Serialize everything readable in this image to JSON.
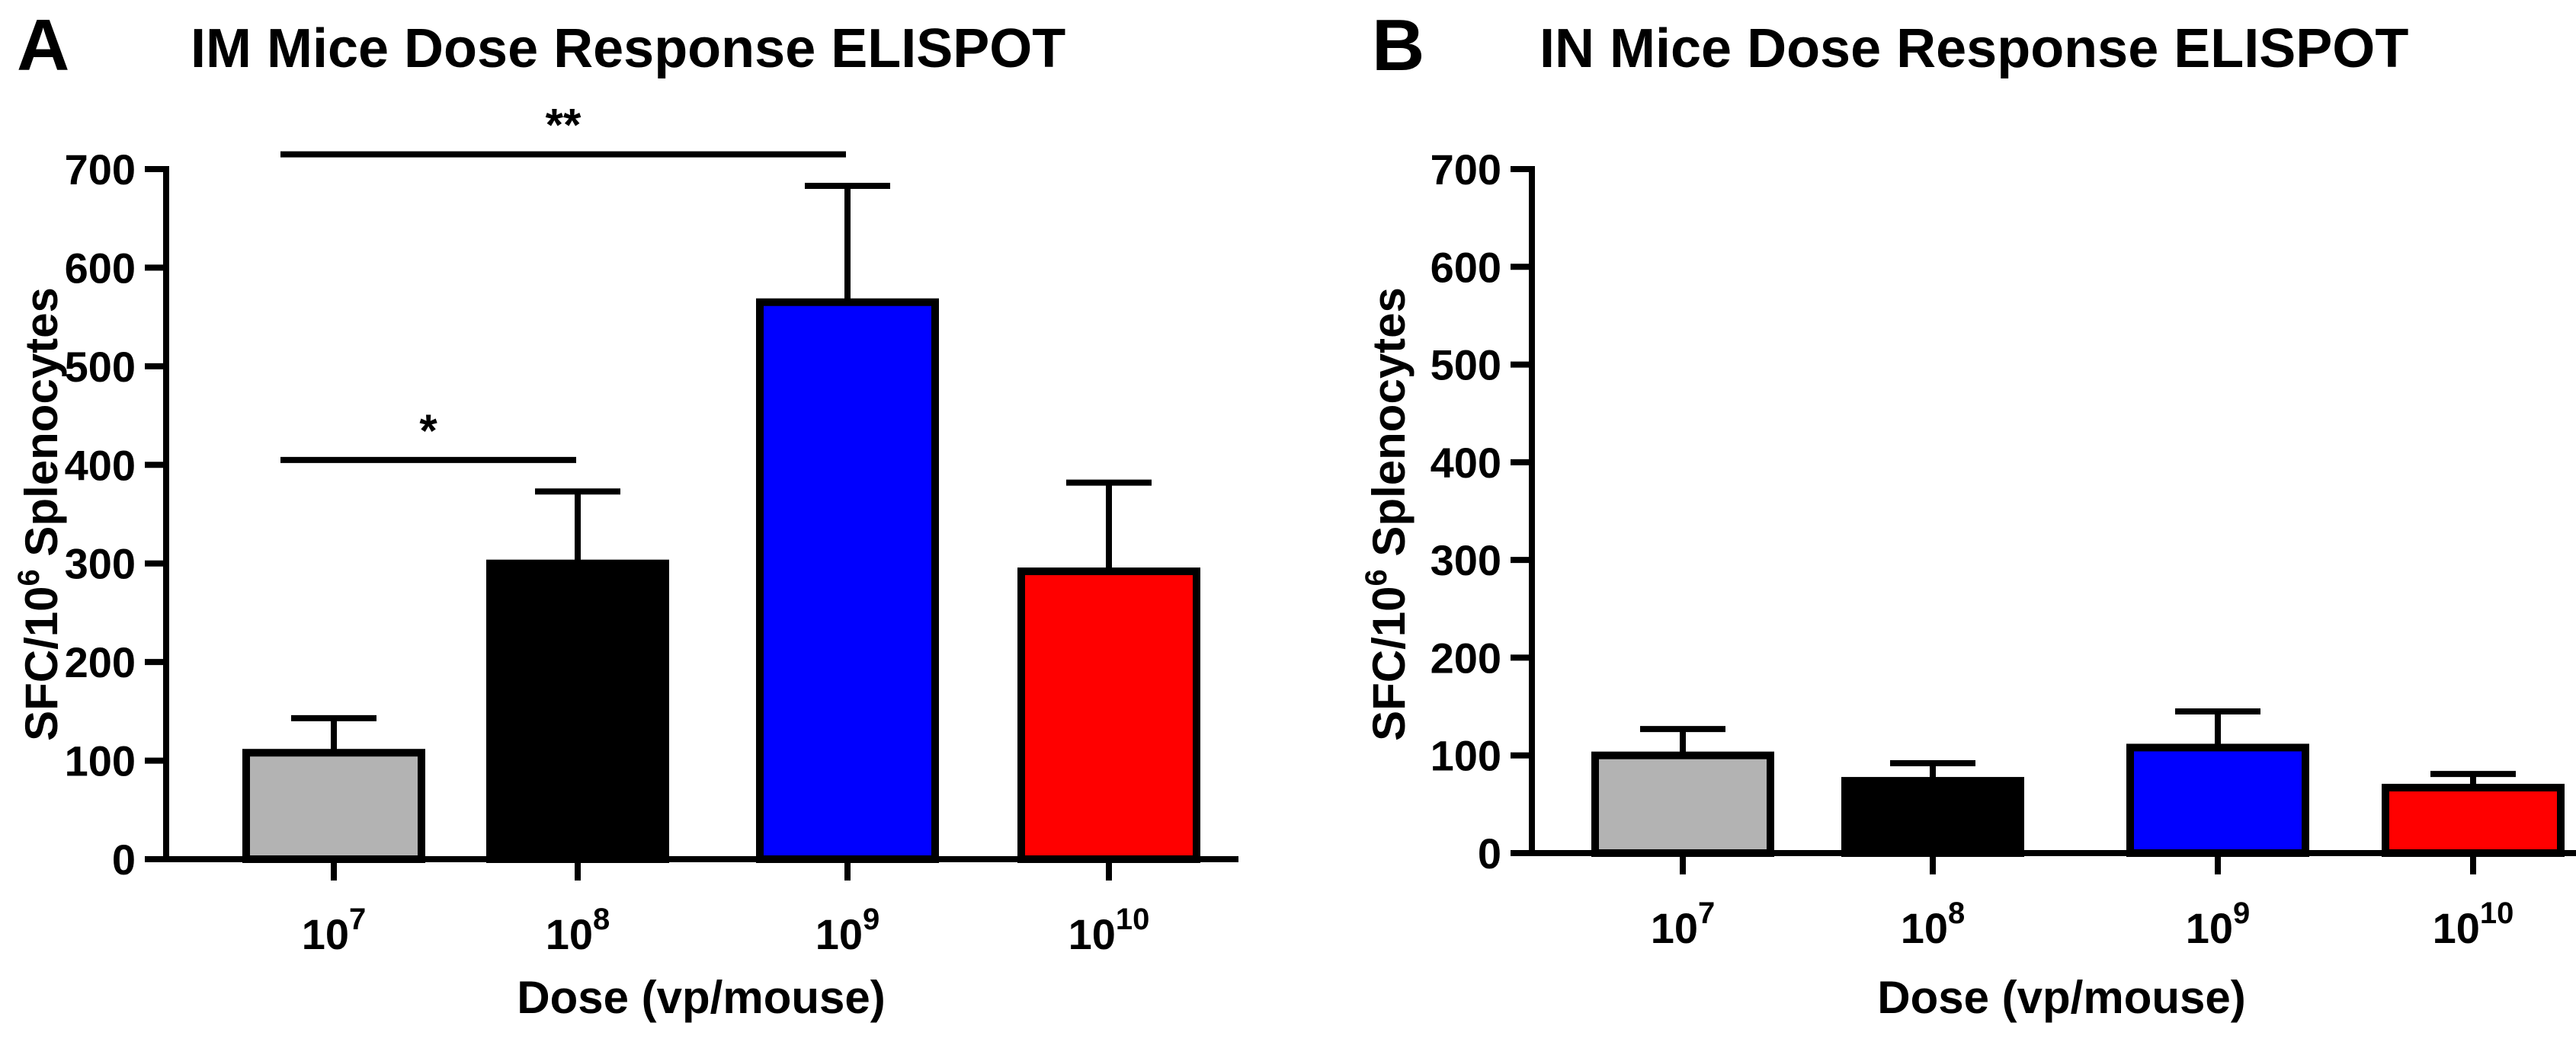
{
  "chart_data": [
    {
      "type": "bar",
      "panel": "A",
      "title": "IM Mice Dose Response ELISPOT",
      "xlabel": "Dose (vp/mouse)",
      "ylabel": "SFC/10^6 Splenocytes",
      "ylabel_parts": {
        "pre": "SFC/10",
        "sup": "6",
        "post": " Splenocytes"
      },
      "categories": [
        {
          "base": "10",
          "exp": "7"
        },
        {
          "base": "10",
          "exp": "8"
        },
        {
          "base": "10",
          "exp": "9"
        },
        {
          "base": "10",
          "exp": "10"
        }
      ],
      "values": [
        108,
        300,
        565,
        292
      ],
      "errors": [
        35,
        73,
        118,
        90
      ],
      "colors": [
        "#b3b3b3",
        "#000000",
        "#0000ff",
        "#ff0000"
      ],
      "ylim": [
        0,
        700
      ],
      "yticks": [
        0,
        100,
        200,
        300,
        400,
        500,
        600,
        700
      ],
      "significance": [
        {
          "from": 0,
          "to": 1,
          "y": 405,
          "label": "*"
        },
        {
          "from": 0,
          "to": 2,
          "y": 715,
          "label": "**"
        }
      ]
    },
    {
      "type": "bar",
      "panel": "B",
      "title": "IN Mice Dose Response ELISPOT",
      "xlabel": "Dose (vp/mouse)",
      "ylabel": "SFC/10^6 Splenocytes",
      "ylabel_parts": {
        "pre": "SFC/10",
        "sup": "6",
        "post": " Splenocytes"
      },
      "categories": [
        {
          "base": "10",
          "exp": "7"
        },
        {
          "base": "10",
          "exp": "8"
        },
        {
          "base": "10",
          "exp": "9"
        },
        {
          "base": "10",
          "exp": "10"
        }
      ],
      "values": [
        100,
        74,
        108,
        67
      ],
      "errors": [
        27,
        18,
        37,
        14
      ],
      "colors": [
        "#b3b3b3",
        "#000000",
        "#0000ff",
        "#ff0000"
      ],
      "ylim": [
        0,
        700
      ],
      "yticks": [
        0,
        100,
        200,
        300,
        400,
        500,
        600,
        700
      ],
      "significance": []
    }
  ]
}
